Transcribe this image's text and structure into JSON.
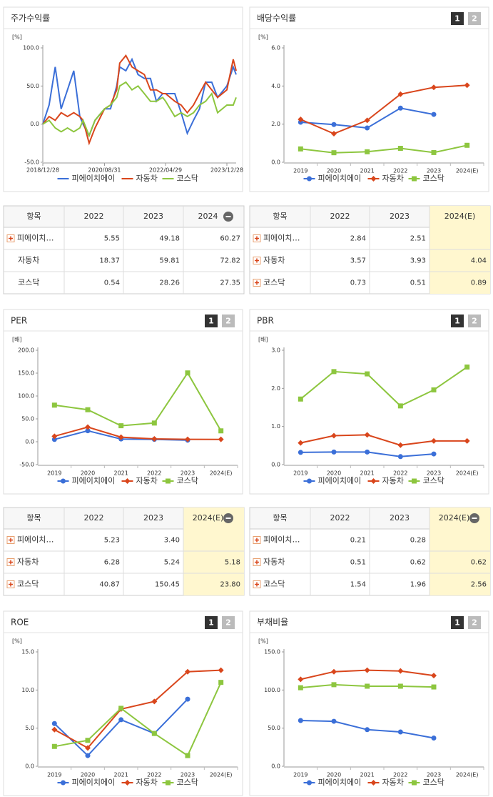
{
  "chart_data": [
    {
      "type": "line",
      "title": "주가수익률",
      "unit": "[%]",
      "markers": false,
      "x": [
        "2018/12/28",
        "2019/02/28",
        "2019/04/30",
        "2019/06/28",
        "2019/08/30",
        "2019/10/31",
        "2019/12/30",
        "2020/01/31",
        "2020/03/31",
        "2020/05/29",
        "2020/08/31",
        "2020/10/30",
        "2020/12/30",
        "2021/01/29",
        "2021/03/31",
        "2021/05/31",
        "2021/07/30",
        "2021/09/30",
        "2021/11/30",
        "2022/01/28",
        "2022/03/31",
        "2022/04/29",
        "2022/07/29",
        "2022/09/30",
        "2022/11/30",
        "2023/01/31",
        "2023/03/31",
        "2023/05/31",
        "2023/07/31",
        "2023/09/27",
        "2023/12/28",
        "2024/02/29",
        "2024/03/29"
      ],
      "xlim": [
        "2018/12/28",
        "2024/03/29"
      ],
      "xticks": [
        "2018/12/28",
        "2020/08/31",
        "2022/04/29",
        "2023/12/28"
      ],
      "ylim": [
        -50,
        100
      ],
      "yticks": [
        {
          "value": -50,
          "label": "-50.0"
        },
        {
          "value": 0,
          "label": "0.0"
        },
        {
          "value": 50,
          "label": "50.0"
        },
        {
          "value": 100,
          "label": "100.0"
        }
      ],
      "series": [
        {
          "name": "피에이치에이",
          "color": "#3b6fd8",
          "values": [
            0,
            25,
            75,
            20,
            45,
            70,
            10,
            0,
            -15,
            5,
            20,
            20,
            50,
            75,
            70,
            85,
            65,
            60,
            60,
            30,
            40,
            40,
            40,
            15,
            -12,
            5,
            20,
            55,
            55,
            35,
            50,
            75,
            65
          ]
        },
        {
          "name": "자동차",
          "color": "#d9461c",
          "values": [
            0,
            10,
            5,
            15,
            10,
            15,
            10,
            5,
            -25,
            -5,
            20,
            25,
            45,
            80,
            90,
            75,
            70,
            65,
            45,
            45,
            40,
            40,
            30,
            25,
            15,
            25,
            40,
            55,
            45,
            35,
            45,
            85,
            70
          ]
        },
        {
          "name": "코스닥",
          "color": "#8dc63f",
          "values": [
            0,
            5,
            -5,
            -10,
            -5,
            -10,
            -5,
            5,
            -15,
            5,
            20,
            25,
            35,
            50,
            55,
            45,
            50,
            40,
            30,
            30,
            35,
            30,
            10,
            15,
            10,
            15,
            25,
            30,
            40,
            15,
            25,
            25,
            35
          ]
        }
      ]
    },
    {
      "type": "line",
      "title": "배당수익률",
      "unit": "[%]",
      "markers": true,
      "tabs": [
        "1",
        "2"
      ],
      "categories": [
        "2019",
        "2020",
        "2021",
        "2022",
        "2023",
        "2024(E)"
      ],
      "ylim": [
        0,
        6
      ],
      "yticks": [
        {
          "value": 0,
          "label": "0.0"
        },
        {
          "value": 2,
          "label": "2.0"
        },
        {
          "value": 4,
          "label": "4.0"
        },
        {
          "value": 6,
          "label": "6.0"
        }
      ],
      "series": [
        {
          "name": "피에이치에이",
          "color": "#3b6fd8",
          "values": [
            2.1,
            1.98,
            1.8,
            2.84,
            2.51,
            null
          ]
        },
        {
          "name": "자동차",
          "color": "#d9461c",
          "values": [
            2.25,
            1.5,
            2.2,
            3.57,
            3.93,
            4.04
          ]
        },
        {
          "name": "코스닥",
          "color": "#8dc63f",
          "values": [
            0.7,
            0.5,
            0.55,
            0.73,
            0.51,
            0.89
          ]
        }
      ]
    },
    {
      "type": "line",
      "title": "PER",
      "unit": "[배]",
      "markers": true,
      "tabs": [
        "1",
        "2"
      ],
      "categories": [
        "2019",
        "2020",
        "2021",
        "2022",
        "2023",
        "2024(E)"
      ],
      "ylim": [
        -50,
        200
      ],
      "yticks": [
        {
          "value": -50,
          "label": "-50.0"
        },
        {
          "value": 0,
          "label": "0.0"
        },
        {
          "value": 50,
          "label": "50.0"
        },
        {
          "value": 100,
          "label": "100.0"
        },
        {
          "value": 150,
          "label": "150.0"
        },
        {
          "value": 200,
          "label": "200.0"
        }
      ],
      "series": [
        {
          "name": "피에이치에이",
          "color": "#3b6fd8",
          "values": [
            5,
            24,
            6,
            5.23,
            3.4,
            null
          ]
        },
        {
          "name": "자동차",
          "color": "#d9461c",
          "values": [
            12,
            32,
            10,
            6.28,
            5.24,
            5.18
          ]
        },
        {
          "name": "코스닥",
          "color": "#8dc63f",
          "values": [
            80,
            70,
            35,
            40.87,
            150.45,
            23.8
          ]
        }
      ]
    },
    {
      "type": "line",
      "title": "PBR",
      "unit": "[배]",
      "markers": true,
      "tabs": [
        "1",
        "2"
      ],
      "categories": [
        "2019",
        "2020",
        "2021",
        "2022",
        "2023",
        "2024(E)"
      ],
      "ylim": [
        0,
        3
      ],
      "yticks": [
        {
          "value": 0,
          "label": "0.0"
        },
        {
          "value": 1,
          "label": "1.0"
        },
        {
          "value": 2,
          "label": "2.0"
        },
        {
          "value": 3,
          "label": "3.0"
        }
      ],
      "series": [
        {
          "name": "피에이치에이",
          "color": "#3b6fd8",
          "values": [
            0.32,
            0.33,
            0.33,
            0.21,
            0.28,
            null
          ]
        },
        {
          "name": "자동차",
          "color": "#d9461c",
          "values": [
            0.57,
            0.76,
            0.78,
            0.51,
            0.62,
            0.62
          ]
        },
        {
          "name": "코스닥",
          "color": "#8dc63f",
          "values": [
            1.72,
            2.44,
            2.38,
            1.54,
            1.96,
            2.56
          ]
        }
      ]
    },
    {
      "type": "line",
      "title": "ROE",
      "unit": "[%]",
      "markers": true,
      "tabs": [
        "1",
        "2"
      ],
      "categories": [
        "2019",
        "2020",
        "2021",
        "2022",
        "2023",
        "2024(E)"
      ],
      "ylim": [
        0,
        15
      ],
      "yticks": [
        {
          "value": 0,
          "label": "0.0"
        },
        {
          "value": 5,
          "label": "5.0"
        },
        {
          "value": 10,
          "label": "10.0"
        },
        {
          "value": 15,
          "label": "15.0"
        }
      ],
      "series": [
        {
          "name": "피에이치에이",
          "color": "#3b6fd8",
          "values": [
            5.6,
            1.4,
            6.1,
            4.3,
            8.8,
            null
          ]
        },
        {
          "name": "자동차",
          "color": "#d9461c",
          "values": [
            4.8,
            2.4,
            7.5,
            8.5,
            12.4,
            12.6
          ]
        },
        {
          "name": "코스닥",
          "color": "#8dc63f",
          "values": [
            2.6,
            3.4,
            7.6,
            4.3,
            1.4,
            11.0
          ]
        }
      ]
    },
    {
      "type": "line",
      "title": "부채비율",
      "unit": "[%]",
      "markers": true,
      "tabs": [
        "1",
        "2"
      ],
      "categories": [
        "2019",
        "2020",
        "2021",
        "2022",
        "2023",
        "2024(E)"
      ],
      "ylim": [
        0,
        150
      ],
      "yticks": [
        {
          "value": 0,
          "label": "0.0"
        },
        {
          "value": 50,
          "label": "50.0"
        },
        {
          "value": 100,
          "label": "100.0"
        },
        {
          "value": 150,
          "label": "150.0"
        }
      ],
      "series": [
        {
          "name": "피에이치에이",
          "color": "#3b6fd8",
          "values": [
            60,
            59,
            48,
            45,
            37,
            null
          ]
        },
        {
          "name": "자동차",
          "color": "#d9461c",
          "values": [
            114,
            124,
            126,
            125,
            119,
            null
          ]
        },
        {
          "name": "코스닥",
          "color": "#8dc63f",
          "values": [
            103,
            107,
            105,
            105,
            104,
            null
          ]
        }
      ]
    }
  ],
  "tables": [
    {
      "header": [
        "항목",
        "2022",
        "2023",
        "2024"
      ],
      "collapse_icon": true,
      "highlight_last": false,
      "row_icons": [
        true,
        false,
        false
      ],
      "rows": [
        [
          "피에이치…",
          "5.55",
          "49.18",
          "60.27"
        ],
        [
          "자동차",
          "18.37",
          "59.81",
          "72.82"
        ],
        [
          "코스닥",
          "0.54",
          "28.26",
          "27.35"
        ]
      ]
    },
    {
      "header": [
        "항목",
        "2022",
        "2023",
        "2024(E)"
      ],
      "collapse_icon": false,
      "highlight_last": true,
      "row_icons": [
        true,
        true,
        true
      ],
      "rows": [
        [
          "피에이치…",
          "2.84",
          "2.51",
          null
        ],
        [
          "자동차",
          "3.57",
          "3.93",
          "4.04"
        ],
        [
          "코스닥",
          "0.73",
          "0.51",
          "0.89"
        ]
      ]
    },
    {
      "header": [
        "항목",
        "2022",
        "2023",
        "2024(E)"
      ],
      "collapse_icon": true,
      "highlight_last": true,
      "row_icons": [
        true,
        true,
        true
      ],
      "rows": [
        [
          "피에이치…",
          "5.23",
          "3.40",
          null
        ],
        [
          "자동차",
          "6.28",
          "5.24",
          "5.18"
        ],
        [
          "코스닥",
          "40.87",
          "150.45",
          "23.80"
        ]
      ]
    },
    {
      "header": [
        "항목",
        "2022",
        "2023",
        "2024(E)"
      ],
      "collapse_icon": true,
      "highlight_last": true,
      "row_icons": [
        true,
        true,
        true
      ],
      "rows": [
        [
          "피에이치…",
          "0.21",
          "0.28",
          null
        ],
        [
          "자동차",
          "0.51",
          "0.62",
          "0.62"
        ],
        [
          "코스닥",
          "1.54",
          "1.96",
          "2.56"
        ]
      ]
    }
  ]
}
